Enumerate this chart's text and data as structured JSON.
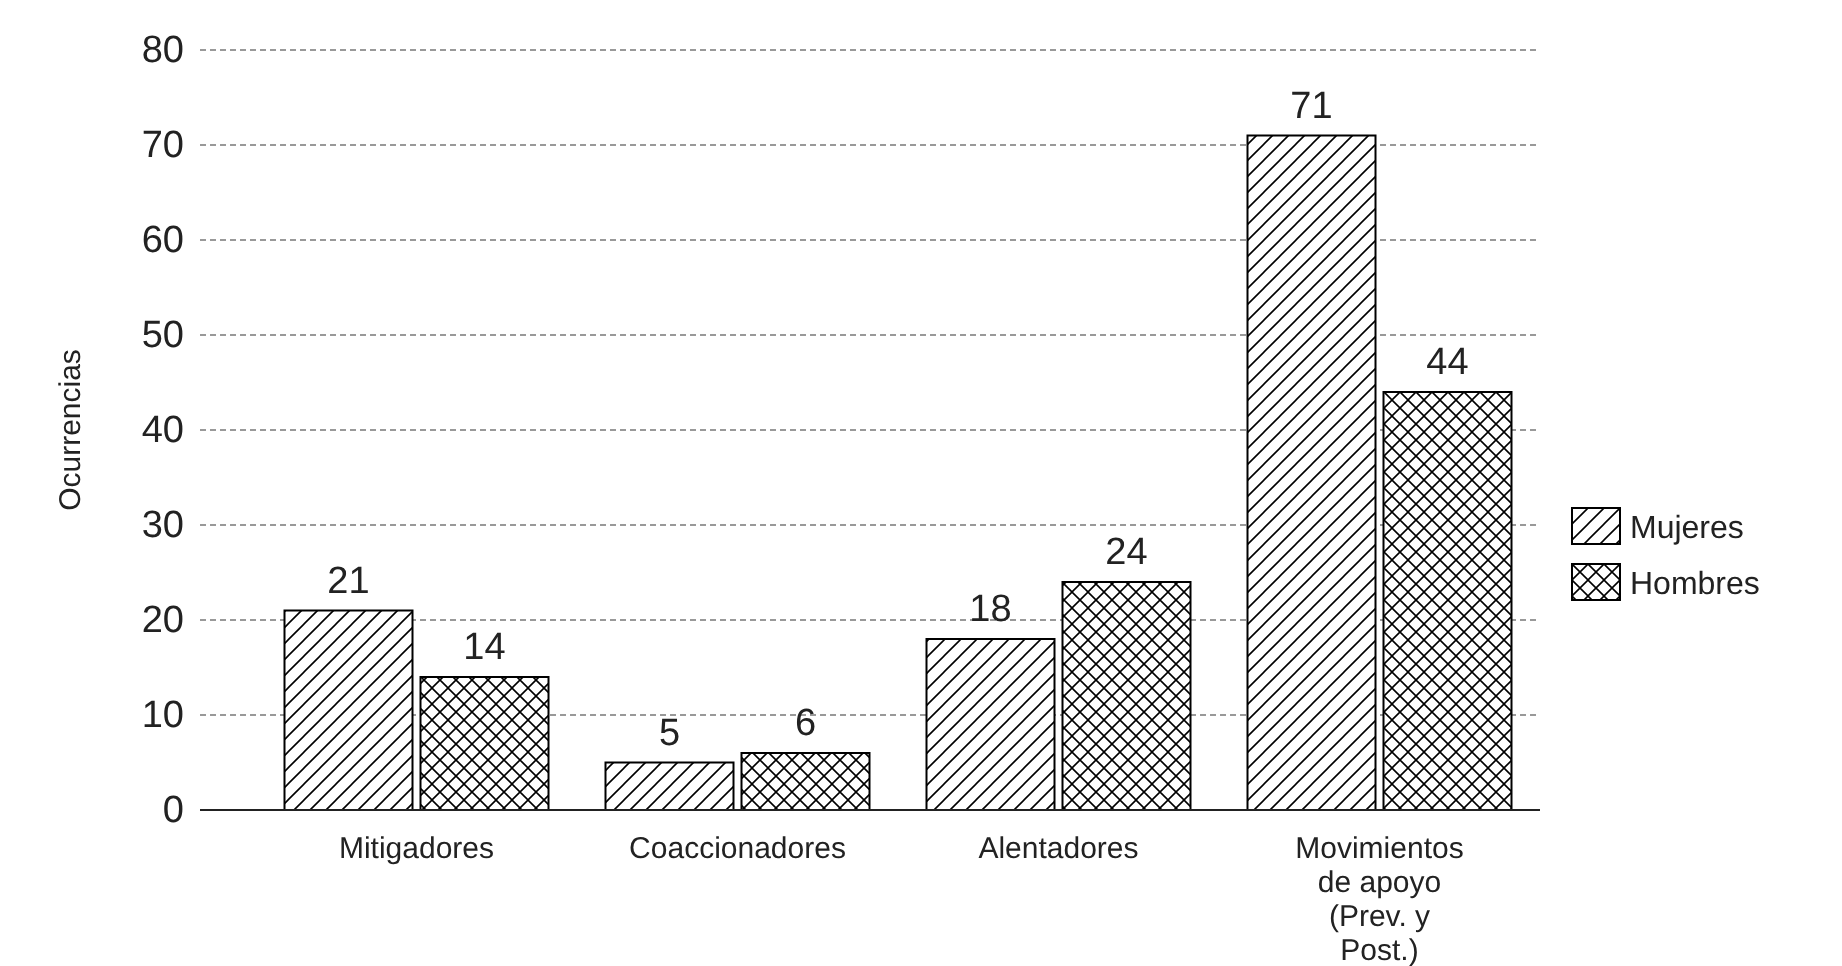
{
  "chart_data": {
    "type": "bar",
    "ylabel": "Ocurrencias",
    "categories": [
      "Mitigadores",
      "Coaccionadores",
      "Alentadores",
      "Movimientos de apoyo (Prev. y Post.)"
    ],
    "series": [
      {
        "name": "Mujeres",
        "color": "#000000",
        "values": [
          21,
          5,
          18,
          71
        ]
      },
      {
        "name": "Hombres",
        "color": "#000000",
        "values": [
          14,
          6,
          24,
          44
        ]
      }
    ],
    "ylim": [
      0,
      80
    ],
    "yticks": [
      0,
      10,
      20,
      30,
      40,
      50,
      60,
      70,
      80
    ],
    "grid": "y",
    "legend": "right",
    "data_labels": true
  }
}
